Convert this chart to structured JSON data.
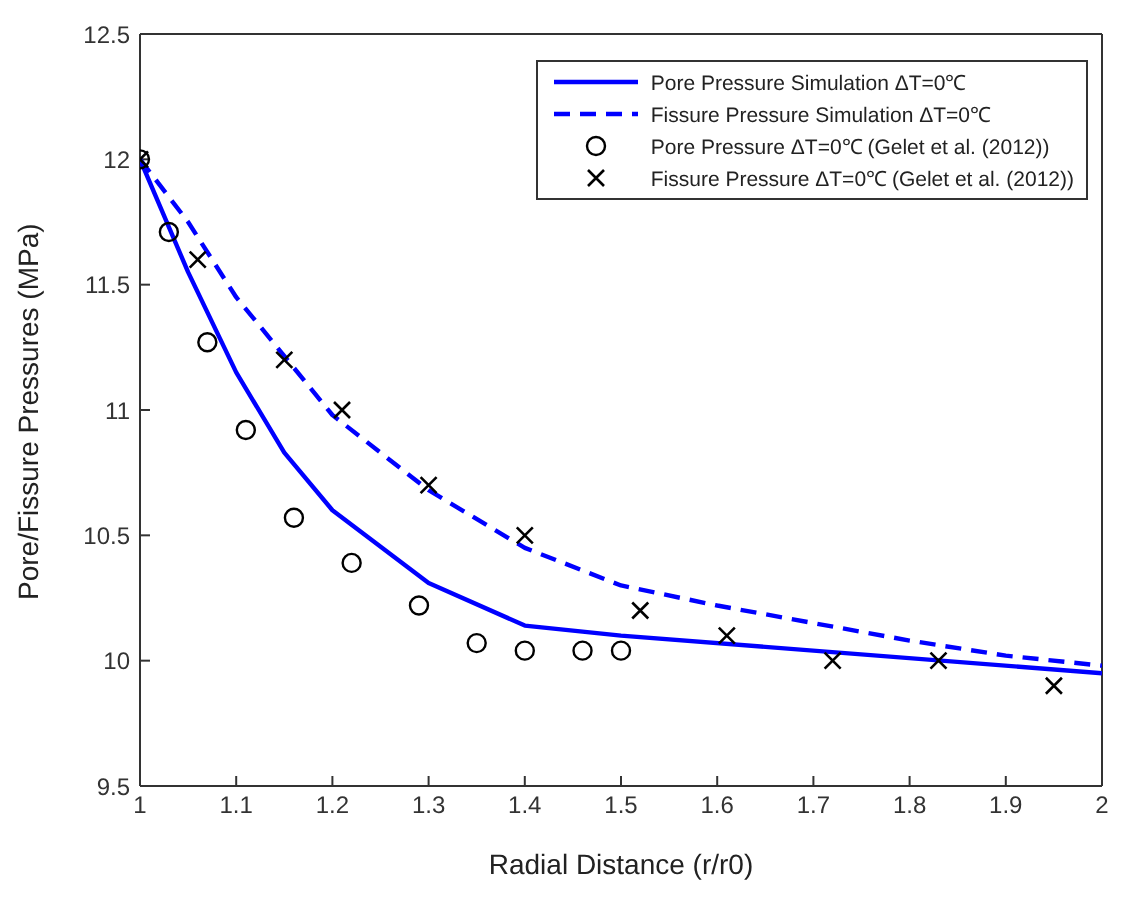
{
  "chart_data": {
    "type": "line",
    "xlabel": "Radial Distance (r/r0)",
    "ylabel": "Pore/Fissure Pressures (MPa)",
    "xlim": [
      1,
      2
    ],
    "xticks": [
      1,
      1.1,
      1.2,
      1.3,
      1.4,
      1.5,
      1.6,
      1.7,
      1.8,
      1.9,
      2
    ],
    "ylim": [
      9.5,
      12.5
    ],
    "yticks": [
      9.5,
      10,
      10.5,
      11,
      11.5,
      12,
      12.5
    ],
    "legend": "top right",
    "series": [
      {
        "name": "Pore Pressure Simulation ΔT=0℃",
        "type": "line",
        "color": "#0000ff",
        "line_style": "solid",
        "marker": "none",
        "x": [
          1,
          1.05,
          1.1,
          1.15,
          1.2,
          1.3,
          1.4,
          1.5,
          2
        ],
        "values": [
          12,
          11.55,
          11.15,
          10.83,
          10.6,
          10.31,
          10.14,
          10.1,
          9.95
        ]
      },
      {
        "name": "Fissure Pressure Simulation ΔT=0℃",
        "type": "line",
        "color": "#0000ff",
        "line_style": "dashed",
        "marker": "none",
        "x": [
          1,
          1.05,
          1.1,
          1.2,
          1.3,
          1.4,
          1.5,
          1.6,
          1.7,
          1.8,
          1.9,
          2
        ],
        "values": [
          12,
          11.75,
          11.45,
          10.98,
          10.68,
          10.45,
          10.3,
          10.22,
          10.15,
          10.08,
          10.02,
          9.98
        ]
      },
      {
        "name": "Pore Pressure ΔT=0℃ (Gelet et al. (2012))",
        "type": "scatter",
        "color": "#000000",
        "marker": "circle",
        "x": [
          1,
          1.03,
          1.07,
          1.11,
          1.16,
          1.22,
          1.29,
          1.35,
          1.4,
          1.46,
          1.5
        ],
        "values": [
          12,
          11.71,
          11.27,
          10.92,
          10.57,
          10.39,
          10.22,
          10.07,
          10.04,
          10.04,
          10.04
        ]
      },
      {
        "name": "Fissure Pressure ΔT=0℃ (Gelet et al. (2012))",
        "type": "scatter",
        "color": "#000000",
        "marker": "cross",
        "x": [
          1,
          1.06,
          1.15,
          1.21,
          1.3,
          1.4,
          1.52,
          1.61,
          1.72,
          1.83,
          1.95
        ],
        "values": [
          12,
          11.6,
          11.2,
          11,
          10.7,
          10.5,
          10.2,
          10.1,
          10,
          10,
          9.9
        ]
      }
    ]
  }
}
